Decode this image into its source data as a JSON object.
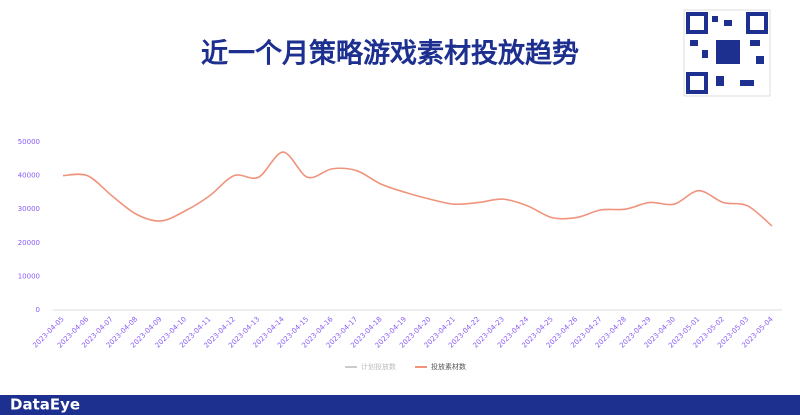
{
  "chart_data": {
    "type": "line",
    "title": "近一个月策略游戏素材投放趋势",
    "categories": [
      "2023-04-05",
      "2023-04-06",
      "2023-04-07",
      "2023-04-08",
      "2023-04-09",
      "2023-04-10",
      "2023-04-11",
      "2023-04-12",
      "2023-04-13",
      "2023-04-14",
      "2023-04-15",
      "2023-04-16",
      "2023-04-17",
      "2023-04-18",
      "2023-04-19",
      "2023-04-20",
      "2023-04-21",
      "2023-04-22",
      "2023-04-23",
      "2023-04-24",
      "2023-04-25",
      "2023-04-26",
      "2023-04-27",
      "2023-04-28",
      "2023-04-29",
      "2023-04-30",
      "2023-05-01",
      "2023-05-02",
      "2023-05-03",
      "2023-05-04"
    ],
    "series": [
      {
        "name": "计划投放数",
        "color": "#cccccc",
        "hidden": true,
        "values": [
          null,
          null,
          null,
          null,
          null,
          null,
          null,
          null,
          null,
          null,
          null,
          null,
          null,
          null,
          null,
          null,
          null,
          null,
          null,
          null,
          null,
          null,
          null,
          null,
          null,
          null,
          null,
          null,
          null,
          null
        ]
      },
      {
        "name": "投放素材数",
        "color": "#f0937d",
        "hidden": false,
        "values": [
          40000,
          40000,
          34000,
          28500,
          26500,
          29500,
          34000,
          40000,
          39500,
          47000,
          39500,
          42000,
          41500,
          37500,
          35000,
          33000,
          31500,
          32000,
          33000,
          31000,
          27500,
          27500,
          29800,
          30000,
          32000,
          31500,
          35500,
          32000,
          31000,
          25000
        ]
      }
    ],
    "ylim": [
      0,
      50000
    ],
    "yticks": [
      0,
      10000,
      20000,
      30000,
      40000,
      50000
    ],
    "grid": false,
    "smooth": true,
    "legend": "bottom",
    "brand": "DataEye"
  }
}
